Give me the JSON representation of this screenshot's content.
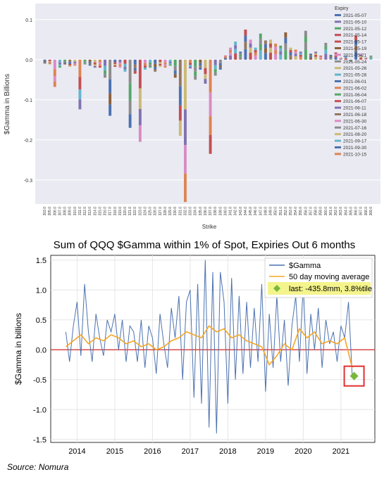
{
  "chart_data": [
    {
      "type": "bar",
      "stacked": true,
      "title": "",
      "xlabel": "Strike",
      "ylabel": "$Gamma in Billions",
      "ylim": [
        -0.36,
        0.14
      ],
      "yticks": [
        0.1,
        0.0,
        -0.1,
        -0.2,
        -0.3
      ],
      "ytick_labels": [
        "0.1",
        "0.0",
        "-0.1",
        "-0.2",
        "-0.3"
      ],
      "grid": true,
      "background": "#eaeaf2",
      "legend": {
        "title": "Expiry",
        "position": "top-right"
      },
      "categories": [
        "303.0",
        "305.0",
        "306.0",
        "307.0",
        "308.0",
        "309.0",
        "310.0",
        "311.0",
        "312.0",
        "313.0",
        "314.0",
        "315.0",
        "316.0",
        "317.0",
        "318.0",
        "319.0",
        "320.0",
        "321.0",
        "322.0",
        "323.0",
        "324.0",
        "325.0",
        "326.0",
        "327.0",
        "328.0",
        "329.0",
        "330.0",
        "331.0",
        "332.0",
        "333.0",
        "334.0",
        "335.0",
        "336.0",
        "337.0",
        "338.0",
        "339.0",
        "340.0",
        "341.0",
        "342.0",
        "343.0",
        "344.0",
        "345.0",
        "346.0",
        "347.0",
        "348.0",
        "349.0",
        "350.0",
        "351.0",
        "352.0",
        "353.0",
        "354.0",
        "355.0",
        "356.0",
        "357.0",
        "358.0",
        "359.0",
        "360.0",
        "361.0",
        "362.0",
        "363.0",
        "364.0",
        "365.0",
        "366.0",
        "367.0",
        "368.0",
        "369.0"
      ],
      "totals": [
        -0.01,
        -0.012,
        -0.068,
        -0.02,
        -0.012,
        -0.018,
        -0.015,
        -0.124,
        -0.012,
        -0.015,
        -0.02,
        -0.02,
        -0.045,
        -0.14,
        -0.018,
        -0.02,
        -0.03,
        -0.17,
        -0.035,
        -0.205,
        -0.025,
        -0.02,
        -0.03,
        -0.018,
        -0.02,
        -0.015,
        -0.045,
        -0.19,
        -0.355,
        -0.022,
        -0.05,
        -0.025,
        -0.06,
        -0.235,
        -0.04,
        -0.025,
        0.01,
        0.03,
        0.045,
        0.02,
        0.075,
        0.05,
        0.03,
        0.065,
        0.048,
        0.05,
        0.04,
        0.035,
        0.068,
        0.03,
        0.025,
        0.02,
        0.072,
        0.015,
        0.02,
        0.01,
        0.042,
        0.012,
        0.018,
        0.005,
        0.01,
        -0.005,
        0.06,
        0.015,
        0.005,
        0.01
      ],
      "series": [
        {
          "name": "2021-05-07",
          "color": "#4c72b0"
        },
        {
          "name": "2021-05-10",
          "color": "#8172b2"
        },
        {
          "name": "2021-05-12",
          "color": "#55a868"
        },
        {
          "name": "2021-05-14",
          "color": "#c44e52"
        },
        {
          "name": "2021-05-17",
          "color": "#c44e52"
        },
        {
          "name": "2021-05-19",
          "color": "#8c613c"
        },
        {
          "name": "2021-05-21",
          "color": "#da8bc3"
        },
        {
          "name": "2021-05-24",
          "color": "#8c8c8c"
        },
        {
          "name": "2021-05-26",
          "color": "#ccb974"
        },
        {
          "name": "2021-05-28",
          "color": "#64b5cd"
        },
        {
          "name": "2021-06-01",
          "color": "#4c72b0"
        },
        {
          "name": "2021-06-02",
          "color": "#dd8452"
        },
        {
          "name": "2021-06-04",
          "color": "#55a868"
        },
        {
          "name": "2021-06-07",
          "color": "#c44e52"
        },
        {
          "name": "2021-06-11",
          "color": "#8172b2"
        },
        {
          "name": "2021-06-18",
          "color": "#937860"
        },
        {
          "name": "2021-06-30",
          "color": "#da8bc3"
        },
        {
          "name": "2021-07-16",
          "color": "#8c8c8c"
        },
        {
          "name": "2021-08-20",
          "color": "#ccb974"
        },
        {
          "name": "2021-09-17",
          "color": "#64b5cd"
        },
        {
          "name": "2021-09-30",
          "color": "#4c72b0"
        },
        {
          "name": "2021-10-15",
          "color": "#dd8452"
        }
      ]
    },
    {
      "type": "line",
      "title": "Sum of QQQ $Gamma within 1% of Spot, Expiries Out 6 months",
      "xlabel": "",
      "ylabel": "$Gamma in billions",
      "xlim": [
        2013.3,
        2021.9
      ],
      "ylim": [
        -1.55,
        1.58
      ],
      "xticks": [
        2014,
        2015,
        2016,
        2017,
        2018,
        2019,
        2020,
        2021
      ],
      "xtick_labels": [
        "2014",
        "2015",
        "2016",
        "2017",
        "2018",
        "2019",
        "2020",
        "2021"
      ],
      "yticks": [
        1.5,
        1.0,
        0.5,
        0.0,
        -0.5,
        -1.0,
        -1.5
      ],
      "ytick_labels": [
        "1.5",
        "1.0",
        "0.5",
        "0.0",
        "-0.5",
        "-1.0",
        "-1.5"
      ],
      "grid": true,
      "zero_line_color": "#d62728",
      "legend": {
        "position": "top-right",
        "entries": [
          {
            "label": "$Gamma",
            "color": "#4c72b0",
            "kind": "line"
          },
          {
            "label": "50 day moving average",
            "color": "#f5a623",
            "kind": "line"
          },
          {
            "label": "last: -435.8mm, 3.8%tile",
            "color": "#77b83a",
            "kind": "diamond",
            "background": "#f4f48c"
          }
        ]
      },
      "series": [
        {
          "name": "$Gamma",
          "color": "#4c72b0",
          "x": [
            2013.7,
            2013.8,
            2013.9,
            2014.0,
            2014.1,
            2014.2,
            2014.3,
            2014.4,
            2014.5,
            2014.6,
            2014.7,
            2014.8,
            2014.9,
            2015.0,
            2015.1,
            2015.2,
            2015.3,
            2015.4,
            2015.5,
            2015.6,
            2015.7,
            2015.8,
            2015.9,
            2016.0,
            2016.1,
            2016.2,
            2016.3,
            2016.4,
            2016.5,
            2016.6,
            2016.7,
            2016.8,
            2016.9,
            2017.0,
            2017.1,
            2017.2,
            2017.3,
            2017.4,
            2017.5,
            2017.6,
            2017.7,
            2017.8,
            2017.9,
            2018.0,
            2018.1,
            2018.2,
            2018.3,
            2018.4,
            2018.5,
            2018.6,
            2018.7,
            2018.8,
            2018.9,
            2019.0,
            2019.1,
            2019.2,
            2019.3,
            2019.4,
            2019.5,
            2019.6,
            2019.7,
            2019.8,
            2019.9,
            2020.0,
            2020.1,
            2020.2,
            2020.3,
            2020.4,
            2020.5,
            2020.6,
            2020.7,
            2020.8,
            2020.9,
            2021.0,
            2021.1,
            2021.2,
            2021.3
          ],
          "y": [
            0.3,
            -0.2,
            0.4,
            0.8,
            -0.1,
            1.1,
            0.3,
            -0.2,
            0.6,
            0.2,
            -0.1,
            0.5,
            0.3,
            0.6,
            0.0,
            0.5,
            -0.2,
            0.4,
            0.3,
            -0.2,
            0.5,
            -0.3,
            0.4,
            0.2,
            -0.4,
            0.6,
            0.1,
            -0.3,
            0.7,
            0.2,
            0.9,
            -0.5,
            0.8,
            1.0,
            -0.8,
            1.1,
            -0.9,
            1.5,
            -1.3,
            1.3,
            -1.4,
            1.3,
            0.8,
            -0.9,
            1.2,
            -0.5,
            0.9,
            -0.4,
            0.8,
            -0.3,
            0.7,
            -0.2,
            1.1,
            -0.7,
            0.6,
            -0.3,
            0.9,
            -0.2,
            0.5,
            -0.6,
            0.4,
            0.9,
            -0.2,
            1.1,
            -0.4,
            0.6,
            0.0,
            0.7,
            -0.3,
            0.5,
            0.1,
            0.3,
            -0.2,
            0.4,
            0.2,
            0.8,
            -0.44
          ]
        },
        {
          "name": "50 day moving average",
          "color": "#f5a623",
          "x": [
            2013.7,
            2013.9,
            2014.1,
            2014.3,
            2014.5,
            2014.7,
            2014.9,
            2015.1,
            2015.3,
            2015.5,
            2015.7,
            2015.9,
            2016.1,
            2016.3,
            2016.5,
            2016.7,
            2016.9,
            2017.1,
            2017.3,
            2017.5,
            2017.7,
            2017.9,
            2018.1,
            2018.3,
            2018.5,
            2018.7,
            2018.9,
            2019.1,
            2019.3,
            2019.5,
            2019.7,
            2019.9,
            2020.1,
            2020.3,
            2020.5,
            2020.7,
            2020.9,
            2021.1,
            2021.3
          ],
          "y": [
            0.05,
            0.15,
            0.25,
            0.1,
            0.2,
            0.15,
            0.25,
            0.2,
            0.1,
            0.15,
            0.05,
            0.1,
            0.0,
            0.05,
            0.15,
            0.2,
            0.3,
            0.25,
            0.2,
            0.4,
            0.3,
            0.35,
            0.2,
            0.25,
            0.15,
            0.1,
            0.05,
            -0.25,
            -0.1,
            0.1,
            0.0,
            0.35,
            0.2,
            0.3,
            0.1,
            0.15,
            0.1,
            0.2,
            -0.3
          ]
        }
      ],
      "last_point": {
        "x": 2021.35,
        "y": -0.44
      }
    }
  ],
  "source_label": "Source: Nomura",
  "colors": {
    "plot_bg": "#eaeaf2",
    "grid": "#ffffff",
    "highlight_box": "#e03030"
  }
}
